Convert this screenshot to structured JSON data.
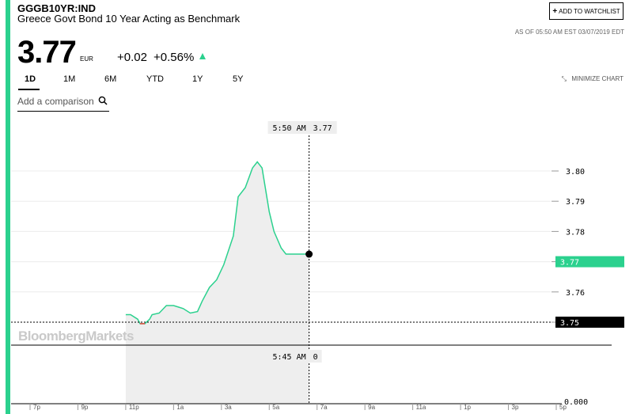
{
  "header": {
    "ticker": "GGGB10YR:IND",
    "name": "Greece Govt Bond 10 Year Acting as Benchmark",
    "watchlist_label": "ADD TO WATCHLIST",
    "as_of": "AS OF 05:50 AM EST 03/07/2019 EDT"
  },
  "quote": {
    "price": "3.77",
    "currency": "EUR",
    "change": "+0.02",
    "change_pct": "+0.56%",
    "direction": "up"
  },
  "ranges": [
    "1D",
    "1M",
    "6M",
    "YTD",
    "1Y",
    "5Y"
  ],
  "active_range": "1D",
  "minimize_label": "MINIMIZE CHART",
  "compare_placeholder": "Add a comparison",
  "watermark": "BloombergMarkets",
  "colors": {
    "accent": "#2bd18e",
    "down": "#e8463a",
    "text": "#000000"
  },
  "chart_data": {
    "type": "line",
    "x_ticks": [
      "7p",
      "9p",
      "11p",
      "1a",
      "3a",
      "5a",
      "7a",
      "9a",
      "11a",
      "1p",
      "3p",
      "5p"
    ],
    "ylim": [
      3.745,
      3.805
    ],
    "y_ticks": [
      "3.80",
      "3.79",
      "3.78",
      "3.77",
      "3.76",
      "3.75"
    ],
    "current_value": "3.77",
    "reference_value": "3.75",
    "volume_value": "0.000",
    "crosshair": {
      "time_label": "5:50 AM",
      "value_label": "3.77",
      "volume_time_label": "5:45 AM",
      "volume_value_label": "0"
    },
    "series": [
      {
        "values": [
          [
            2.0,
            3.7525
          ],
          [
            2.1,
            3.7525
          ],
          [
            2.25,
            3.751
          ],
          [
            2.3,
            3.7495
          ],
          [
            2.4,
            3.7495
          ],
          [
            2.5,
            3.751
          ],
          [
            2.55,
            3.7525
          ],
          [
            2.7,
            3.753
          ],
          [
            2.85,
            3.7555
          ],
          [
            3.0,
            3.7555
          ],
          [
            3.1,
            3.755
          ],
          [
            3.2,
            3.7545
          ],
          [
            3.35,
            3.753
          ],
          [
            3.5,
            3.7535
          ],
          [
            3.6,
            3.757
          ],
          [
            3.75,
            3.7615
          ],
          [
            3.9,
            3.764
          ],
          [
            4.05,
            3.769
          ],
          [
            4.25,
            3.7785
          ],
          [
            4.35,
            3.7915
          ],
          [
            4.5,
            3.7945
          ],
          [
            4.65,
            3.801
          ],
          [
            4.75,
            3.803
          ],
          [
            4.85,
            3.801
          ],
          [
            5.0,
            3.7865
          ],
          [
            5.1,
            3.78
          ],
          [
            5.25,
            3.7745
          ],
          [
            5.35,
            3.7725
          ],
          [
            5.833,
            3.7725
          ]
        ]
      }
    ]
  }
}
